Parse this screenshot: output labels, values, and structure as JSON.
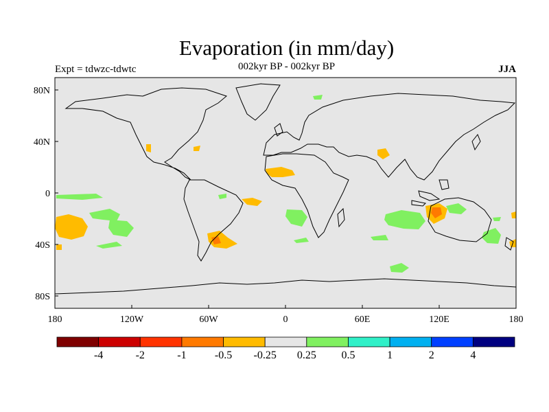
{
  "header": {
    "title": "Evaporation (in mm/day)",
    "subtitle": "002kyr BP - 002kyr BP",
    "left_label": "Expt = tdwzc-tdwtc",
    "right_label": "JJA"
  },
  "axes": {
    "x_ticks": [
      "180",
      "120W",
      "60W",
      "0",
      "60E",
      "120E",
      "180"
    ],
    "y_ticks": [
      "80N",
      "40N",
      "0",
      "40S",
      "80S"
    ]
  },
  "colorbar": {
    "colors": [
      "#7f0000",
      "#cc0000",
      "#ff3300",
      "#ff7a00",
      "#ffbb00",
      "#e6e6e6",
      "#80f060",
      "#30f0c8",
      "#00b0f0",
      "#0040ff",
      "#000080"
    ],
    "labels": [
      "-4",
      "-2",
      "-1",
      "-0.5",
      "-0.25",
      "0.25",
      "0.5",
      "1",
      "2",
      "4"
    ]
  },
  "colors": {
    "ocean_bg": "#e6e6e6",
    "positive_light": "#80f060",
    "negative_light": "#ffbb00",
    "negative_mid": "#ff7a00"
  }
}
